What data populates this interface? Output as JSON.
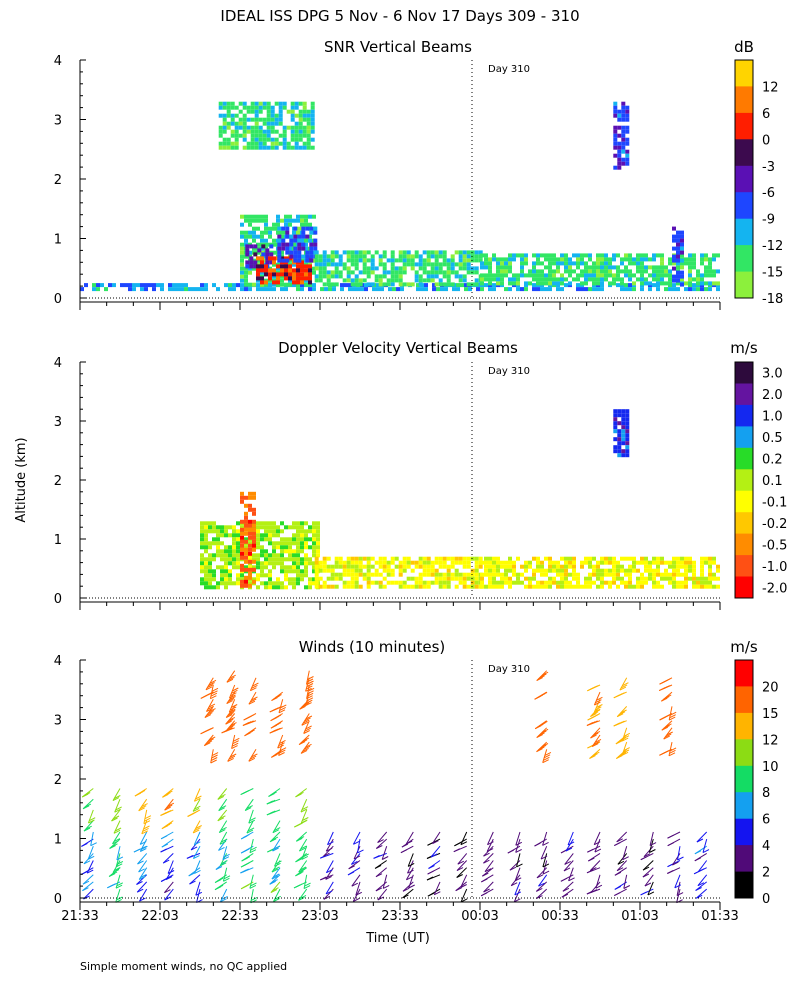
{
  "figure": {
    "title": "IDEAL ISS DPG   5 Nov -  6 Nov 17 Days 309 - 310",
    "ylabel": "Altitude (km)",
    "xlabel": "Time (UT)",
    "footnote": "Simple moment winds, no QC applied",
    "day_marker": "Day 310",
    "x_ticks": [
      "21:33",
      "22:03",
      "22:33",
      "23:03",
      "23:33",
      "00:03",
      "00:33",
      "01:03",
      "01:33"
    ],
    "y_ticks": [
      "0",
      "1",
      "2",
      "3",
      "4"
    ]
  },
  "chart_data": [
    {
      "type": "heatmap",
      "title": "SNR Vertical Beams",
      "units": "dB",
      "ylim": [
        0,
        4
      ],
      "xlim_minutes": [
        0,
        240
      ],
      "day_boundary_minute": 147,
      "colorbar": {
        "labels": [
          "12",
          "6",
          "0",
          "-3",
          "-6",
          "-9",
          "-12",
          "-15",
          "-18"
        ],
        "colors": [
          "#ffd400",
          "#ff7a00",
          "#ff1e00",
          "#3c0a4e",
          "#5a10b4",
          "#1e46ff",
          "#14b4f0",
          "#32e664",
          "#8cf03c"
        ]
      },
      "features": [
        {
          "t0": 0,
          "t1": 240,
          "h0": 0.17,
          "h1": 0.25,
          "class": "-12"
        },
        {
          "t0": 60,
          "t1": 88,
          "h0": 0.25,
          "h1": 1.4,
          "class": "-15"
        },
        {
          "t0": 62,
          "t1": 72,
          "h0": 0.5,
          "h1": 0.9,
          "class": "-6"
        },
        {
          "t0": 66,
          "t1": 86,
          "h0": 0.25,
          "h1": 0.7,
          "class": "0"
        },
        {
          "t0": 74,
          "t1": 88,
          "h0": 0.6,
          "h1": 1.2,
          "class": "-9"
        },
        {
          "t0": 52,
          "t1": 88,
          "h0": 2.5,
          "h1": 3.3,
          "class": "-15"
        },
        {
          "t0": 88,
          "t1": 150,
          "h0": 0.25,
          "h1": 0.8,
          "class": "-15"
        },
        {
          "t0": 150,
          "t1": 240,
          "h0": 0.25,
          "h1": 0.75,
          "class": "-15"
        },
        {
          "t0": 200,
          "t1": 205,
          "h0": 2.2,
          "h1": 3.3,
          "class": "-9"
        },
        {
          "t0": 222,
          "t1": 226,
          "h0": 0.25,
          "h1": 1.2,
          "class": "-9"
        }
      ]
    },
    {
      "type": "heatmap",
      "title": "Doppler Velocity Vertical Beams",
      "units": "m/s",
      "ylim": [
        0,
        4
      ],
      "xlim_minutes": [
        0,
        240
      ],
      "day_boundary_minute": 147,
      "colorbar": {
        "labels": [
          "3.0",
          "2.0",
          "1.0",
          "0.5",
          "0.2",
          "0.1",
          "-0.1",
          "-0.2",
          "-0.5",
          "-1.0",
          "-2.0"
        ],
        "colors": [
          "#2d0a3c",
          "#6414a0",
          "#1428f0",
          "#14a0f0",
          "#28dc28",
          "#b4f014",
          "#ffff00",
          "#ffc800",
          "#ff8c00",
          "#ff5014",
          "#ff0000"
        ]
      },
      "features": [
        {
          "t0": 45,
          "t1": 90,
          "h0": 0.2,
          "h1": 1.3,
          "class": "0.1"
        },
        {
          "t0": 60,
          "t1": 66,
          "h0": 0.2,
          "h1": 1.8,
          "class": "-1.0"
        },
        {
          "t0": 88,
          "t1": 150,
          "h0": 0.2,
          "h1": 0.7,
          "class": "-0.1"
        },
        {
          "t0": 150,
          "t1": 240,
          "h0": 0.2,
          "h1": 0.7,
          "class": "-0.1"
        },
        {
          "t0": 200,
          "t1": 205,
          "h0": 2.4,
          "h1": 3.2,
          "class": "1.0"
        }
      ]
    },
    {
      "type": "wind_barbs",
      "title": "Winds (10 minutes)",
      "units": "m/s",
      "ylim": [
        0,
        4
      ],
      "xlim_minutes": [
        0,
        240
      ],
      "averaging_minutes": 10,
      "colorbar": {
        "labels": [
          "20",
          "15",
          "12",
          "10",
          "8",
          "6",
          "4",
          "2",
          "0"
        ],
        "colors": [
          "#ff0000",
          "#ff6400",
          "#ffb400",
          "#8cdc14",
          "#14dc64",
          "#14a0f0",
          "#1414f0",
          "#500a78",
          "#000000"
        ]
      },
      "column_times_minutes": [
        5,
        15,
        25,
        35,
        45,
        55,
        65,
        75,
        85,
        95,
        105,
        115,
        125,
        135,
        145,
        155,
        165,
        175,
        185,
        195,
        205,
        215,
        225,
        235
      ],
      "speed_profiles_mps": {
        "low_levels_0_to_1.2km": [
          6,
          8,
          7,
          5,
          6,
          8,
          9,
          9,
          9,
          4,
          4,
          3,
          3,
          3,
          3,
          3,
          3,
          3,
          3,
          3,
          3,
          3,
          4,
          5
        ],
        "mid_levels_1.2_to_2km": [
          10,
          11,
          14,
          15,
          12,
          10,
          9,
          10,
          11
        ],
        "upper_levels_2.5_to_4km": [
          18,
          17,
          16,
          16,
          18,
          19,
          15,
          14,
          16
        ]
      }
    }
  ]
}
